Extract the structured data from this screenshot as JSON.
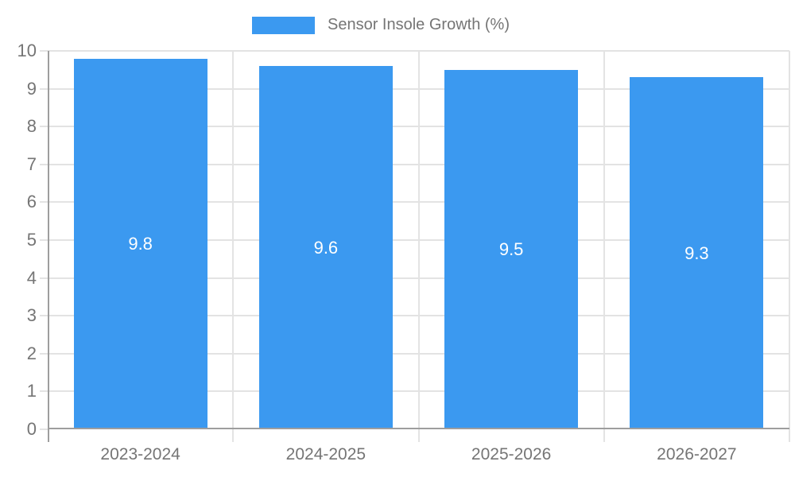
{
  "legend": {
    "label": "Sensor Insole Growth (%)"
  },
  "chart_data": {
    "type": "bar",
    "title": "",
    "xlabel": "",
    "ylabel": "",
    "legend_entries": [
      "Sensor Insole Growth (%)"
    ],
    "legend_position": "top-center",
    "categories": [
      "2023-2024",
      "2024-2025",
      "2025-2026",
      "2026-2027"
    ],
    "series": [
      {
        "name": "Sensor Insole Growth (%)",
        "values": [
          9.8,
          9.6,
          9.5,
          9.3
        ]
      }
    ],
    "values": [
      9.8,
      9.6,
      9.5,
      9.3
    ],
    "data_labels": [
      "9.8",
      "9.6",
      "9.5",
      "9.3"
    ],
    "ylim": [
      0,
      10
    ],
    "y_ticks": [
      0,
      1,
      2,
      3,
      4,
      5,
      6,
      7,
      8,
      9,
      10
    ],
    "grid": true,
    "bar_color": "#3B99F0",
    "bar_label_color": "#FFFFFF",
    "axis_color": "#9E9E9E",
    "gridline_color": "#E3E3E3",
    "text_color": "#757575"
  }
}
